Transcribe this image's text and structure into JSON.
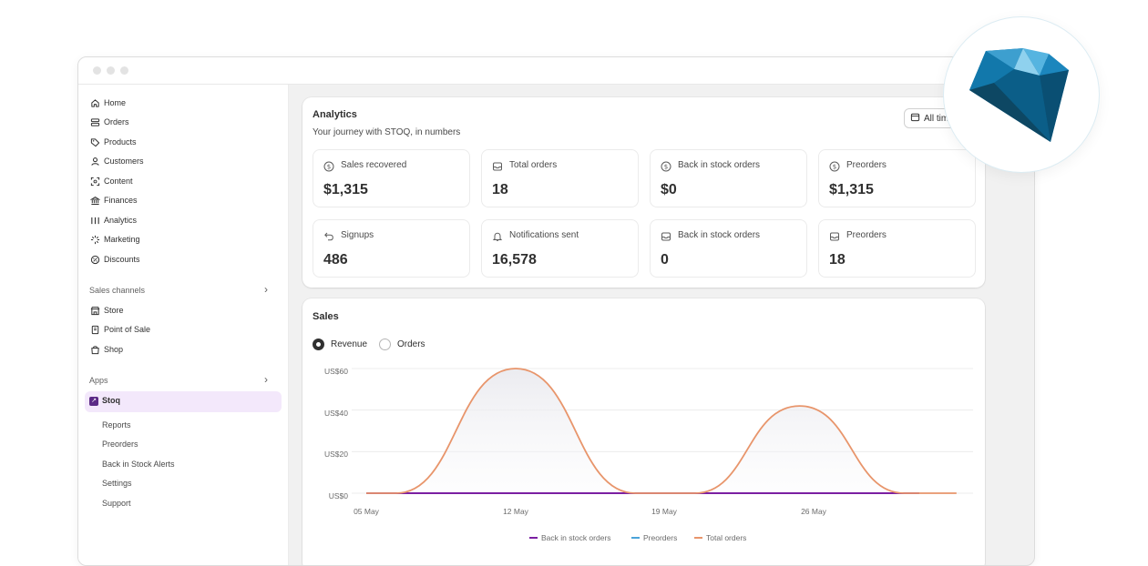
{
  "window_dots": [
    "dot",
    "dot",
    "dot"
  ],
  "sidebar": {
    "nav": [
      {
        "label": "Home",
        "icon": "home-icon"
      },
      {
        "label": "Orders",
        "icon": "orders-icon"
      },
      {
        "label": "Products",
        "icon": "tag-icon"
      },
      {
        "label": "Customers",
        "icon": "person-icon"
      },
      {
        "label": "Content",
        "icon": "content-icon"
      },
      {
        "label": "Finances",
        "icon": "bank-icon"
      },
      {
        "label": "Analytics",
        "icon": "bars-icon"
      },
      {
        "label": "Marketing",
        "icon": "sparkle-icon"
      },
      {
        "label": "Discounts",
        "icon": "discount-icon"
      }
    ],
    "sales_channels_label": "Sales channels",
    "channels": [
      {
        "label": "Store",
        "icon": "store-icon"
      },
      {
        "label": "Point of Sale",
        "icon": "pos-icon"
      },
      {
        "label": "Shop",
        "icon": "bag-icon"
      }
    ],
    "apps_label": "Apps",
    "stoq_label": "Stoq",
    "stoq_sub": [
      "Reports",
      "Preorders",
      "Back in Stock Alerts",
      "Settings",
      "Support"
    ]
  },
  "analytics": {
    "title": "Analytics",
    "subtitle": "Your journey with STOQ, in numbers",
    "range_button": "All tim",
    "metrics": [
      {
        "label": "Sales recovered",
        "value": "$1,315",
        "icon": "dollar-icon"
      },
      {
        "label": "Total orders",
        "value": "18",
        "icon": "inbox-icon"
      },
      {
        "label": "Back in stock orders",
        "value": "$0",
        "icon": "dollar-icon"
      },
      {
        "label": "Preorders",
        "value": "$1,315",
        "icon": "dollar-icon"
      },
      {
        "label": "Signups",
        "value": "486",
        "icon": "undo-icon"
      },
      {
        "label": "Notifications sent",
        "value": "16,578",
        "icon": "bell-icon"
      },
      {
        "label": "Back in stock orders",
        "value": "0",
        "icon": "inbox-icon"
      },
      {
        "label": "Preorders",
        "value": "18",
        "icon": "inbox-icon"
      }
    ]
  },
  "sales": {
    "title": "Sales",
    "radio_revenue": "Revenue",
    "radio_orders": "Orders",
    "selected": "Revenue"
  },
  "chart_data": {
    "type": "line",
    "x": [
      "05 May",
      "12 May",
      "19 May",
      "26 May"
    ],
    "y_ticks": [
      "US$0",
      "US$20",
      "US$40",
      "US$60"
    ],
    "ylim": [
      0,
      60
    ],
    "grid": true,
    "legend_position": "bottom",
    "series": [
      {
        "name": "Back in stock orders",
        "color": "#7b1fa2",
        "points": [
          [
            0,
            0
          ],
          [
            3.7,
            0
          ]
        ]
      },
      {
        "name": "Preorders",
        "color": "#4ba3d9",
        "points": [
          [
            0,
            0
          ],
          [
            3.7,
            0
          ]
        ]
      },
      {
        "name": "Total orders",
        "color": "#e8956b",
        "points": [
          [
            0,
            0
          ],
          [
            0.2,
            0
          ],
          [
            1,
            60
          ],
          [
            1.8,
            0
          ],
          [
            2.2,
            0
          ],
          [
            2.9,
            42
          ],
          [
            3.6,
            0
          ],
          [
            3.95,
            0
          ]
        ]
      }
    ]
  },
  "colors": {
    "accent_purple": "#5b2a86",
    "stoq_highlight": "#f3e8fb",
    "total_orders": "#e8956b",
    "preorders": "#4ba3d9",
    "back_in_stock": "#7b1fa2",
    "gem": "#1a7fb3"
  }
}
